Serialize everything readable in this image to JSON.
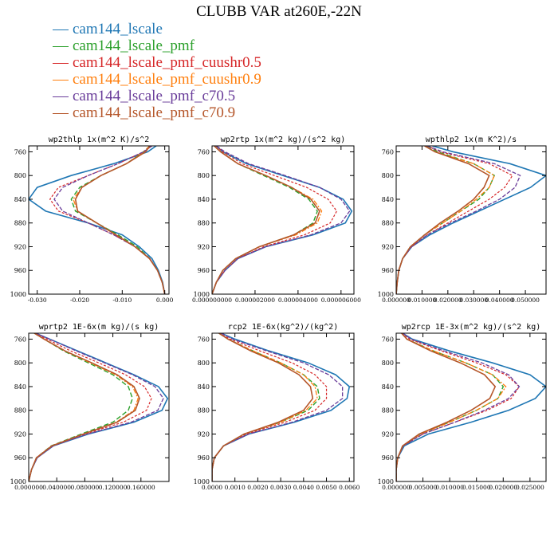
{
  "figure": {
    "title": "CLUBB VAR at260E,-22N"
  },
  "legend": [
    {
      "name": "cam144_lscale",
      "color": "#1f77b4"
    },
    {
      "name": "cam144_lscale_pmf",
      "color": "#2ca02c"
    },
    {
      "name": "cam144_lscale_pmf_cuushr0.5",
      "color": "#d62728"
    },
    {
      "name": "cam144_lscale_pmf_cuushr0.9",
      "color": "#ff7f0e"
    },
    {
      "name": "cam144_lscale_pmf_c70.5",
      "color": "#6a3d9a"
    },
    {
      "name": "cam144_lscale_pmf_c70.9",
      "color": "#b5562a"
    }
  ],
  "chart_data": [
    {
      "type": "line",
      "title": "wp2thlp  1x(m^2 K)/s^2",
      "y_ticks": [
        "760",
        "800",
        "840",
        "880",
        "920",
        "960",
        "1000"
      ],
      "ylim": [
        750,
        1000
      ],
      "y_inverted": true,
      "xlim": [
        -0.032,
        0.001
      ],
      "x_ticks": [
        {
          "v": -0.03,
          "label": "-0.030"
        },
        {
          "v": -0.02,
          "label": "-0.020"
        },
        {
          "v": -0.01,
          "label": "-0.010"
        },
        {
          "v": 0.0,
          "label": "0.000"
        }
      ],
      "y": [
        750,
        760,
        780,
        800,
        820,
        840,
        860,
        880,
        900,
        920,
        940,
        960,
        980,
        1000
      ],
      "series": [
        {
          "name": "cam144_lscale",
          "values": [
            -0.002,
            -0.004,
            -0.012,
            -0.022,
            -0.03,
            -0.032,
            -0.028,
            -0.018,
            -0.01,
            -0.006,
            -0.003,
            -0.0015,
            -0.0005,
            0.0
          ]
        },
        {
          "name": "cam144_lscale_pmf",
          "values": [
            -0.0035,
            -0.005,
            -0.009,
            -0.015,
            -0.02,
            -0.022,
            -0.021,
            -0.016,
            -0.011,
            -0.0065,
            -0.0035,
            -0.0017,
            -0.0006,
            0.0
          ]
        },
        {
          "name": "cam144_lscale_pmf_cuushr0.5",
          "values": [
            -0.003,
            -0.005,
            -0.011,
            -0.018,
            -0.025,
            -0.027,
            -0.025,
            -0.018,
            -0.012,
            -0.007,
            -0.0035,
            -0.0017,
            -0.0006,
            0.0
          ]
        },
        {
          "name": "cam144_lscale_pmf_cuushr0.9",
          "values": [
            -0.0035,
            -0.005,
            -0.009,
            -0.015,
            -0.0195,
            -0.0215,
            -0.0205,
            -0.016,
            -0.0115,
            -0.007,
            -0.0036,
            -0.0017,
            -0.0006,
            0.0
          ]
        },
        {
          "name": "cam144_lscale_pmf_c70.5",
          "values": [
            -0.003,
            -0.005,
            -0.011,
            -0.018,
            -0.024,
            -0.026,
            -0.024,
            -0.018,
            -0.012,
            -0.007,
            -0.0035,
            -0.0017,
            -0.0006,
            0.0
          ]
        },
        {
          "name": "cam144_lscale_pmf_c70.9",
          "values": [
            -0.0035,
            -0.0045,
            -0.009,
            -0.015,
            -0.0195,
            -0.021,
            -0.0205,
            -0.016,
            -0.0115,
            -0.007,
            -0.0036,
            -0.0017,
            -0.0006,
            0.0
          ]
        }
      ]
    },
    {
      "type": "line",
      "title": "wp2rtp  1x(m^2 kg)/(s^2 kg)",
      "y_ticks": [
        "760",
        "800",
        "840",
        "880",
        "920",
        "960",
        "1000"
      ],
      "ylim": [
        750,
        1000
      ],
      "y_inverted": true,
      "xlim": [
        0,
        6.6e-06
      ],
      "x_ticks": [
        {
          "v": 0,
          "label": "0.000000000"
        },
        {
          "v": 2e-06,
          "label": "0.000002000"
        },
        {
          "v": 4e-06,
          "label": "0.000004000"
        },
        {
          "v": 6e-06,
          "label": "0.000006000"
        }
      ],
      "y": [
        750,
        760,
        780,
        800,
        820,
        840,
        860,
        880,
        900,
        920,
        940,
        960,
        980,
        1000
      ],
      "series": [
        {
          "name": "cam144_lscale",
          "values": [
            2e-07,
            5e-07,
            1.6e-06,
            3.3e-06,
            5e-06,
            6.1e-06,
            6.5e-06,
            6.2e-06,
            4.7e-06,
            2.5e-06,
            1.2e-06,
            6e-07,
            2e-07,
            0.0
          ]
        },
        {
          "name": "cam144_lscale_pmf",
          "values": [
            1e-07,
            4e-07,
            1.2e-06,
            2.4e-06,
            3.6e-06,
            4.5e-06,
            4.9e-06,
            4.7e-06,
            3.8e-06,
            2.2e-06,
            1.1e-06,
            5e-07,
            2e-07,
            0.0
          ]
        },
        {
          "name": "cam144_lscale_pmf_cuushr0.5",
          "values": [
            2e-07,
            5e-07,
            1.4e-06,
            2.9e-06,
            4.4e-06,
            5.4e-06,
            5.8e-06,
            5.5e-06,
            4.3e-06,
            2.4e-06,
            1.2e-06,
            6e-07,
            2e-07,
            0.0
          ]
        },
        {
          "name": "cam144_lscale_pmf_cuushr0.9",
          "values": [
            1e-07,
            4e-07,
            1.2e-06,
            2.5e-06,
            3.7e-06,
            4.7e-06,
            5.1e-06,
            4.9e-06,
            3.9e-06,
            2.2e-06,
            1.1e-06,
            5e-07,
            2e-07,
            0.0
          ]
        },
        {
          "name": "cam144_lscale_pmf_c70.5",
          "values": [
            2e-07,
            6e-07,
            1.7e-06,
            3.4e-06,
            5e-06,
            6e-06,
            6.4e-06,
            6e-06,
            4.6e-06,
            2.5e-06,
            1.2e-06,
            6e-07,
            2e-07,
            0.0
          ]
        },
        {
          "name": "cam144_lscale_pmf_c70.9",
          "values": [
            1e-07,
            4e-07,
            1.2e-06,
            2.5e-06,
            3.7e-06,
            4.6e-06,
            5e-06,
            4.8e-06,
            3.8e-06,
            2.2e-06,
            1.1e-06,
            5e-07,
            2e-07,
            0.0
          ]
        }
      ]
    },
    {
      "type": "line",
      "title": "wpthlp2  1x(m K^2)/s",
      "y_ticks": [
        "760",
        "800",
        "840",
        "880",
        "920",
        "960",
        "1000"
      ],
      "ylim": [
        750,
        1000
      ],
      "y_inverted": true,
      "xlim": [
        0,
        0.058
      ],
      "x_ticks": [
        {
          "v": 0,
          "label": "0.000000"
        },
        {
          "v": 0.01,
          "label": "0.010000"
        },
        {
          "v": 0.02,
          "label": "0.020000"
        },
        {
          "v": 0.03,
          "label": "0.030000"
        },
        {
          "v": 0.04,
          "label": "0.040000"
        },
        {
          "v": 0.05,
          "label": "0.050000"
        }
      ],
      "y": [
        750,
        760,
        780,
        800,
        820,
        840,
        860,
        880,
        900,
        920,
        940,
        960,
        980,
        1000
      ],
      "series": [
        {
          "name": "cam144_lscale",
          "values": [
            0.014,
            0.022,
            0.044,
            0.058,
            0.052,
            0.042,
            0.032,
            0.022,
            0.013,
            0.006,
            0.0025,
            0.001,
            0.0004,
            0.0
          ]
        },
        {
          "name": "cam144_lscale_pmf",
          "values": [
            0.012,
            0.016,
            0.03,
            0.038,
            0.036,
            0.032,
            0.025,
            0.018,
            0.011,
            0.0055,
            0.0025,
            0.001,
            0.0004,
            0.0
          ]
        },
        {
          "name": "cam144_lscale_pmf_cuushr0.5",
          "values": [
            0.012,
            0.017,
            0.036,
            0.045,
            0.042,
            0.036,
            0.028,
            0.02,
            0.012,
            0.006,
            0.0025,
            0.001,
            0.0004,
            0.0
          ]
        },
        {
          "name": "cam144_lscale_pmf_cuushr0.9",
          "values": [
            0.011,
            0.015,
            0.03,
            0.038,
            0.036,
            0.031,
            0.025,
            0.018,
            0.011,
            0.0055,
            0.0025,
            0.001,
            0.0004,
            0.0
          ]
        },
        {
          "name": "cam144_lscale_pmf_c70.5",
          "values": [
            0.012,
            0.018,
            0.038,
            0.048,
            0.046,
            0.04,
            0.031,
            0.021,
            0.012,
            0.006,
            0.0025,
            0.001,
            0.0004,
            0.0
          ]
        },
        {
          "name": "cam144_lscale_pmf_c70.9",
          "values": [
            0.011,
            0.015,
            0.028,
            0.036,
            0.034,
            0.03,
            0.024,
            0.017,
            0.011,
            0.0055,
            0.0025,
            0.001,
            0.0004,
            0.0
          ]
        }
      ]
    },
    {
      "type": "line",
      "title": "wprtp2  1E-6x(m kg)/(s kg)",
      "y_ticks": [
        "760",
        "800",
        "840",
        "880",
        "920",
        "960",
        "1000"
      ],
      "ylim": [
        750,
        1000
      ],
      "y_inverted": true,
      "xlim": [
        0,
        0.2
      ],
      "x_ticks": [
        {
          "v": 0,
          "label": "0.000000"
        },
        {
          "v": 0.04,
          "label": "0.040000"
        },
        {
          "v": 0.08,
          "label": "0.080000"
        },
        {
          "v": 0.12,
          "label": "0.120000"
        },
        {
          "v": 0.16,
          "label": "0.160000"
        }
      ],
      "y": [
        750,
        760,
        780,
        800,
        820,
        840,
        860,
        880,
        900,
        920,
        940,
        960,
        980,
        1000
      ],
      "series": [
        {
          "name": "cam144_lscale",
          "values": [
            0.01,
            0.03,
            0.07,
            0.11,
            0.15,
            0.185,
            0.198,
            0.19,
            0.15,
            0.085,
            0.035,
            0.012,
            0.004,
            0.0
          ]
        },
        {
          "name": "cam144_lscale_pmf",
          "values": [
            0.008,
            0.022,
            0.05,
            0.085,
            0.12,
            0.142,
            0.148,
            0.142,
            0.12,
            0.075,
            0.032,
            0.011,
            0.004,
            0.0
          ]
        },
        {
          "name": "cam144_lscale_pmf_cuushr0.5",
          "values": [
            0.009,
            0.026,
            0.06,
            0.1,
            0.138,
            0.165,
            0.175,
            0.168,
            0.135,
            0.08,
            0.034,
            0.012,
            0.004,
            0.0
          ]
        },
        {
          "name": "cam144_lscale_pmf_cuushr0.9",
          "values": [
            0.008,
            0.022,
            0.052,
            0.088,
            0.124,
            0.148,
            0.156,
            0.15,
            0.125,
            0.078,
            0.033,
            0.011,
            0.004,
            0.0
          ]
        },
        {
          "name": "cam144_lscale_pmf_c70.5",
          "values": [
            0.01,
            0.03,
            0.068,
            0.108,
            0.148,
            0.18,
            0.192,
            0.184,
            0.146,
            0.084,
            0.035,
            0.012,
            0.004,
            0.0
          ]
        },
        {
          "name": "cam144_lscale_pmf_c70.9",
          "values": [
            0.008,
            0.022,
            0.052,
            0.09,
            0.126,
            0.15,
            0.158,
            0.152,
            0.126,
            0.078,
            0.033,
            0.011,
            0.004,
            0.0
          ]
        }
      ]
    },
    {
      "type": "line",
      "title": "rcp2  1E-6x(kg^2)/(kg^2)",
      "y_ticks": [
        "760",
        "800",
        "840",
        "880",
        "920",
        "960",
        "1000"
      ],
      "ylim": [
        750,
        1000
      ],
      "y_inverted": true,
      "xlim": [
        0,
        0.0062
      ],
      "x_ticks": [
        {
          "v": 0,
          "label": "0.0000"
        },
        {
          "v": 0.001,
          "label": "0.0010"
        },
        {
          "v": 0.002,
          "label": "0.0020"
        },
        {
          "v": 0.003,
          "label": "0.0030"
        },
        {
          "v": 0.004,
          "label": "0.0040"
        },
        {
          "v": 0.005,
          "label": "0.0050"
        },
        {
          "v": 0.006,
          "label": "0.0060"
        }
      ],
      "y": [
        750,
        760,
        780,
        800,
        820,
        840,
        860,
        880,
        900,
        920,
        940,
        960,
        980,
        1000
      ],
      "series": [
        {
          "name": "cam144_lscale",
          "values": [
            0.0004,
            0.001,
            0.0025,
            0.0042,
            0.0054,
            0.006,
            0.0059,
            0.0052,
            0.0036,
            0.0016,
            0.0005,
            0.0001,
            0.0,
            0.0
          ]
        },
        {
          "name": "cam144_lscale_pmf",
          "values": [
            0.0003,
            0.0007,
            0.0018,
            0.003,
            0.004,
            0.0046,
            0.0047,
            0.0042,
            0.003,
            0.0014,
            0.0005,
            0.0001,
            0.0,
            0.0
          ]
        },
        {
          "name": "cam144_lscale_pmf_cuushr0.5",
          "values": [
            0.0003,
            0.0008,
            0.0021,
            0.0035,
            0.0045,
            0.005,
            0.005,
            0.0045,
            0.0032,
            0.0015,
            0.0005,
            0.0001,
            0.0,
            0.0
          ]
        },
        {
          "name": "cam144_lscale_pmf_cuushr0.9",
          "values": [
            0.0003,
            0.0007,
            0.0018,
            0.003,
            0.004,
            0.0045,
            0.0046,
            0.0041,
            0.003,
            0.0014,
            0.0005,
            0.0001,
            0.0,
            0.0
          ]
        },
        {
          "name": "cam144_lscale_pmf_c70.5",
          "values": [
            0.0004,
            0.0009,
            0.0024,
            0.004,
            0.0051,
            0.0057,
            0.0057,
            0.005,
            0.0035,
            0.0016,
            0.0005,
            0.0001,
            0.0,
            0.0
          ]
        },
        {
          "name": "cam144_lscale_pmf_c70.9",
          "values": [
            0.0003,
            0.0007,
            0.0017,
            0.0029,
            0.0038,
            0.0043,
            0.0044,
            0.004,
            0.0029,
            0.0014,
            0.0005,
            0.0001,
            0.0,
            0.0
          ]
        }
      ]
    },
    {
      "type": "line",
      "title": "wp2rcp  1E-3x(m^2 kg)/(s^2 kg)",
      "y_ticks": [
        "760",
        "800",
        "840",
        "880",
        "920",
        "960",
        "1000"
      ],
      "ylim": [
        750,
        1000
      ],
      "y_inverted": true,
      "xlim": [
        0,
        0.028
      ],
      "x_ticks": [
        {
          "v": 0,
          "label": "0.000000"
        },
        {
          "v": 0.005,
          "label": "0.005000"
        },
        {
          "v": 0.01,
          "label": "0.010000"
        },
        {
          "v": 0.015,
          "label": "0.015000"
        },
        {
          "v": 0.02,
          "label": "0.020000"
        },
        {
          "v": 0.025,
          "label": "0.025000"
        }
      ],
      "y": [
        750,
        760,
        780,
        800,
        820,
        840,
        860,
        880,
        900,
        920,
        940,
        960,
        980,
        1000
      ],
      "series": [
        {
          "name": "cam144_lscale",
          "values": [
            0.0012,
            0.003,
            0.01,
            0.018,
            0.025,
            0.028,
            0.026,
            0.021,
            0.014,
            0.006,
            0.0015,
            0.0003,
            0.0,
            0.0
          ]
        },
        {
          "name": "cam144_lscale_pmf",
          "values": [
            0.001,
            0.002,
            0.007,
            0.013,
            0.018,
            0.02,
            0.019,
            0.015,
            0.01,
            0.0045,
            0.0012,
            0.0003,
            0.0,
            0.0
          ]
        },
        {
          "name": "cam144_lscale_pmf_cuushr0.5",
          "values": [
            0.0011,
            0.0025,
            0.0085,
            0.015,
            0.0205,
            0.023,
            0.0215,
            0.017,
            0.011,
            0.005,
            0.0013,
            0.0003,
            0.0,
            0.0
          ]
        },
        {
          "name": "cam144_lscale_pmf_cuushr0.9",
          "values": [
            0.001,
            0.002,
            0.007,
            0.013,
            0.018,
            0.0205,
            0.019,
            0.015,
            0.01,
            0.0045,
            0.0012,
            0.0003,
            0.0,
            0.0
          ]
        },
        {
          "name": "cam144_lscale_pmf_c70.5",
          "values": [
            0.0012,
            0.0028,
            0.009,
            0.016,
            0.021,
            0.023,
            0.021,
            0.0165,
            0.011,
            0.005,
            0.0013,
            0.0003,
            0.0,
            0.0
          ]
        },
        {
          "name": "cam144_lscale_pmf_c70.9",
          "values": [
            0.001,
            0.002,
            0.0065,
            0.012,
            0.0165,
            0.0185,
            0.0175,
            0.014,
            0.0095,
            0.0043,
            0.0012,
            0.0003,
            0.0,
            0.0
          ]
        }
      ]
    }
  ]
}
